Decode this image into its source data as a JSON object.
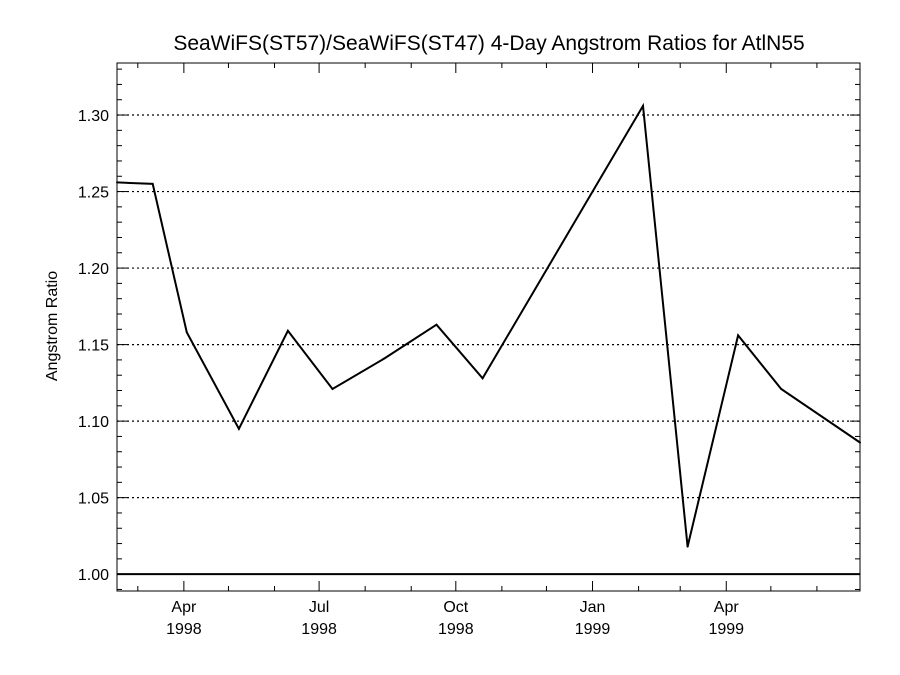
{
  "chart_data": {
    "type": "line",
    "title": "SeaWiFS(ST57)/SeaWiFS(ST47) 4-Day Angstrom Ratios for AtlN55",
    "xlabel": "",
    "ylabel": "Angstrom Ratio",
    "x_start": "1998-02-15",
    "x_end": "1999-06-30",
    "ylim": [
      0.989,
      1.334
    ],
    "yticks": [
      1.0,
      1.05,
      1.1,
      1.15,
      1.2,
      1.25,
      1.3
    ],
    "ytick_labels": [
      "1.00",
      "1.05",
      "1.10",
      "1.15",
      "1.20",
      "1.25",
      "1.30"
    ],
    "xticks": [
      {
        "date": "1998-04-01",
        "month": "Apr",
        "year": "1998"
      },
      {
        "date": "1998-07-01",
        "month": "Jul",
        "year": "1998"
      },
      {
        "date": "1998-10-01",
        "month": "Oct",
        "year": "1998"
      },
      {
        "date": "1999-01-01",
        "month": "Jan",
        "year": "1999"
      },
      {
        "date": "1999-04-01",
        "month": "Apr",
        "year": "1999"
      }
    ],
    "grid": {
      "horizontal": "dotted",
      "vertical": false
    },
    "reference_line": 1.0,
    "series": [
      {
        "color": "#000000",
        "points": [
          {
            "x": "1998-02-15",
            "y": 1.256
          },
          {
            "x": "1998-03-11",
            "y": 1.255
          },
          {
            "x": "1998-04-03",
            "y": 1.158
          },
          {
            "x": "1998-05-08",
            "y": 1.095
          },
          {
            "x": "1998-06-10",
            "y": 1.159
          },
          {
            "x": "1998-07-10",
            "y": 1.121
          },
          {
            "x": "1998-08-14",
            "y": 1.141
          },
          {
            "x": "1998-09-18",
            "y": 1.163
          },
          {
            "x": "1998-10-19",
            "y": 1.128
          },
          {
            "x": "1999-02-04",
            "y": 1.306
          },
          {
            "x": "1999-03-06",
            "y": 1.018
          },
          {
            "x": "1999-04-09",
            "y": 1.156
          },
          {
            "x": "1999-05-08",
            "y": 1.121
          },
          {
            "x": "1999-06-30",
            "y": 1.086
          }
        ]
      }
    ]
  }
}
